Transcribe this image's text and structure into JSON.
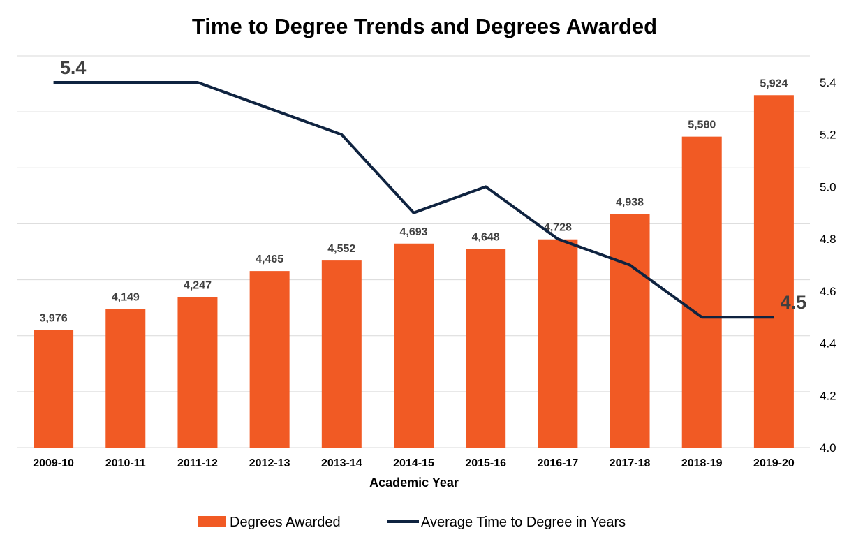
{
  "chart_data": {
    "type": "bar+line",
    "title": "Time to Degree Trends and Degrees Awarded",
    "xlabel": "Academic Year",
    "categories": [
      "2009-10",
      "2010-11",
      "2011-12",
      "2012-13",
      "2013-14",
      "2014-15",
      "2015-16",
      "2016-17",
      "2017-18",
      "2018-19",
      "2019-20"
    ],
    "series": [
      {
        "name": "Degrees Awarded",
        "type": "bar",
        "axis": "left",
        "color": "#f15a24",
        "values": [
          3976,
          4149,
          4247,
          4465,
          4552,
          4693,
          4648,
          4728,
          4938,
          5580,
          5924
        ],
        "labels": [
          "3,976",
          "4,149",
          "4,247",
          "4,465",
          "4,552",
          "4,693",
          "4,648",
          "4,728",
          "4,938",
          "5,580",
          "5,924"
        ]
      },
      {
        "name": "Average Time to Degree in Years",
        "type": "line",
        "axis": "right",
        "color": "#0f2340",
        "values": [
          5.4,
          5.4,
          5.4,
          5.3,
          5.2,
          4.9,
          5.0,
          4.8,
          4.7,
          4.5,
          4.5
        ],
        "point_labels": [
          {
            "index": 0,
            "text": "5.4"
          },
          {
            "index": 10,
            "text": "4.5"
          }
        ]
      }
    ],
    "y_left_range": [
      3000,
      6250
    ],
    "y_right_range": [
      4.0,
      5.4
    ],
    "y_right_ticks": [
      "4.0",
      "4.2",
      "4.4",
      "4.6",
      "4.8",
      "5.0",
      "5.2",
      "5.4"
    ],
    "grid": true,
    "legend_position": "bottom"
  }
}
